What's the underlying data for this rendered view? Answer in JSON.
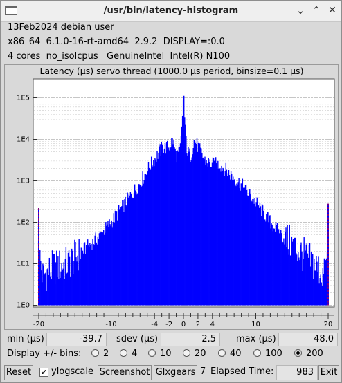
{
  "window": {
    "title": "/usr/bin/latency-histogram"
  },
  "info": {
    "line1": "13Feb2024 debian user",
    "line2": "x86_64  6.1.0-16-rt-amd64  2.9.2  DISPLAY=:0.0",
    "line3": "4 cores  no_isolcpus   GenuineIntel  Intel(R) N100"
  },
  "plot": {
    "title": "Latency (µs) servo thread (1000.0 µs period, binsize=0.1 µs)"
  },
  "chart_data": {
    "type": "bar",
    "title": "Latency (µs) servo thread (1000.0 µs period, binsize=0.1 µs)",
    "xlabel": "",
    "ylabel": "",
    "xlim": [
      -20,
      20
    ],
    "ylim": [
      1,
      300000
    ],
    "yscale": "log",
    "binsize": 0.1,
    "x_ticks": [
      "-20",
      "-10",
      "-4",
      "-2",
      "0",
      "2",
      "4",
      "10",
      "20"
    ],
    "x_tick_values": [
      -20,
      -10,
      -4,
      -2,
      0,
      2,
      4,
      10,
      20
    ],
    "y_ticks": [
      "1E0",
      "1E1",
      "1E2",
      "1E3",
      "1E4",
      "1E5"
    ],
    "y_tick_values": [
      1,
      10,
      100,
      1000,
      10000,
      100000
    ],
    "grid": true,
    "envelope_x": [
      -20,
      -19.5,
      -18,
      -16,
      -14,
      -12,
      -10,
      -8,
      -6,
      -4.5,
      -3,
      -2,
      -1.5,
      -1,
      -0.5,
      -0.2,
      0,
      0.2,
      0.5,
      1,
      1.5,
      2,
      3,
      4,
      5,
      6,
      8,
      10,
      12,
      14,
      16,
      18,
      19.5,
      20
    ],
    "envelope_y": [
      20,
      5,
      8,
      10,
      20,
      40,
      100,
      300,
      900,
      2500,
      6000,
      6500,
      10000,
      4000,
      5000,
      20000,
      170000,
      20000,
      5000,
      4000,
      10000,
      6500,
      3000,
      2500,
      2500,
      1700,
      800,
      300,
      100,
      40,
      20,
      10,
      5,
      20
    ],
    "edge_bins": [
      {
        "x": -20,
        "count": 220
      },
      {
        "x": 20,
        "count": 280
      }
    ]
  },
  "stats": {
    "min_label": "min (µs)",
    "min_value": "-39.7",
    "sdev_label": "sdev (µs)",
    "sdev_value": "2.5",
    "max_label": "max (µs)",
    "max_value": "48.0"
  },
  "bins": {
    "label": "Display +/- bins:",
    "options": [
      "2",
      "4",
      "10",
      "20",
      "40",
      "100",
      "200"
    ],
    "selected": "200"
  },
  "toolbar": {
    "reset": "Reset",
    "ylogscale": "ylogscale",
    "ylogscale_checked": true,
    "screenshot": "Screenshot",
    "glxgears": "Glxgears",
    "glxgears_count": "7",
    "elapsed_label": "Elapsed Time:",
    "elapsed_value": "983",
    "exit": "Exit"
  },
  "colors": {
    "bars": "#0000ff",
    "edge_marker": "#ff0000",
    "plot_bg": "#ffffff"
  }
}
